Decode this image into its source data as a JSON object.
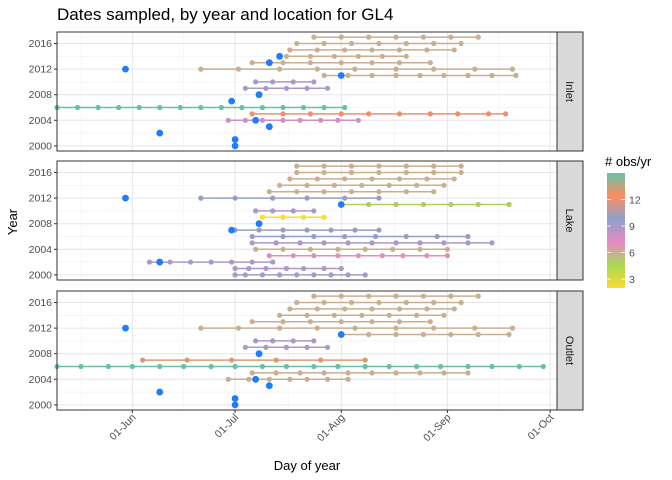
{
  "chart_data": {
    "type": "scatter",
    "title": "Dates sampled, by year and location for GL4",
    "xlabel": "Day of year",
    "ylabel": "Year",
    "x_domain_doy": [
      130,
      276
    ],
    "y_domain": [
      1999.2,
      2017.8
    ],
    "x_ticks": [
      {
        "doy": 152,
        "label": "01-Jun"
      },
      {
        "doy": 182,
        "label": "01-Jul"
      },
      {
        "doy": 213,
        "label": "01-Aug"
      },
      {
        "doy": 244,
        "label": "01-Sep"
      },
      {
        "doy": 274,
        "label": "01-Oct"
      }
    ],
    "y_ticks": [
      2000,
      2004,
      2008,
      2012,
      2016
    ],
    "grid": true,
    "legend": {
      "title": "# obs/yr",
      "position": "right",
      "range": [
        2,
        15
      ],
      "ticks": [
        3,
        6,
        9,
        12
      ],
      "colors": [
        "#FFD92F",
        "#A6D854",
        "#E78AC3",
        "#8DA0CB",
        "#FC8D62",
        "#66C2A5"
      ]
    },
    "single_point_color": "#1F7BFF",
    "panels": [
      {
        "label": "Inlet",
        "series": [
          {
            "year": 2000,
            "doy": [
              182
            ],
            "n": 1
          },
          {
            "year": 2001,
            "doy": [
              182
            ],
            "n": 1
          },
          {
            "year": 2002,
            "doy": [
              160
            ],
            "n": 1
          },
          {
            "year": 2003,
            "doy": [
              192
            ],
            "n": 1
          },
          {
            "year": 2004,
            "doy": [
              180,
              185,
              190,
              196,
              201,
              207,
              212,
              218
            ],
            "n": 8
          },
          {
            "year": 2004,
            "doy": [
              188
            ],
            "n": 1
          },
          {
            "year": 2005,
            "doy": [
              187,
              196,
              204,
              213,
              221,
              230,
              239,
              247,
              256,
              261
            ],
            "n": 12
          },
          {
            "year": 2006,
            "doy": [
              130,
              136,
              142,
              148,
              154,
              160,
              166,
              172,
              178,
              184,
              190,
              196,
              202,
              208,
              214
            ],
            "n": 15
          },
          {
            "year": 2007,
            "doy": [
              181
            ],
            "n": 1
          },
          {
            "year": 2008,
            "doy": [
              189
            ],
            "n": 1
          },
          {
            "year": 2009,
            "doy": [
              185,
              191,
              197,
              203,
              209
            ],
            "n": 9
          },
          {
            "year": 2010,
            "doy": [
              188,
              193,
              199,
              205
            ],
            "n": 9
          },
          {
            "year": 2011,
            "doy": [
              208,
              215,
              222,
              229,
              236,
              243,
              250,
              257,
              264
            ],
            "n": 6
          },
          {
            "year": 2011,
            "doy": [
              213
            ],
            "n": 1
          },
          {
            "year": 2012,
            "doy": [
              172,
              183,
              195,
              206,
              217,
              229,
              240,
              252,
              263
            ],
            "n": 6
          },
          {
            "year": 2012,
            "doy": [
              150
            ],
            "n": 1
          },
          {
            "year": 2013,
            "doy": [
              187,
              196,
              204,
              213,
              222,
              230,
              239
            ],
            "n": 6
          },
          {
            "year": 2013,
            "doy": [
              192
            ],
            "n": 1
          },
          {
            "year": 2014,
            "doy": [
              197,
              204,
              211,
              218,
              225,
              232
            ],
            "n": 6
          },
          {
            "year": 2014,
            "doy": [
              195
            ],
            "n": 1
          },
          {
            "year": 2015,
            "doy": [
              198,
              206,
              214,
              222,
              230,
              238,
              246
            ],
            "n": 6
          },
          {
            "year": 2016,
            "doy": [
              200,
              208,
              216,
              224,
              232,
              240,
              248
            ],
            "n": 6
          },
          {
            "year": 2017,
            "doy": [
              205,
              213,
              221,
              229,
              237,
              245,
              253
            ],
            "n": 6
          }
        ]
      },
      {
        "label": "Lake",
        "series": [
          {
            "year": 2000,
            "doy": [
              182,
              185,
              190,
              195,
              200,
              205,
              210,
              215,
              220
            ],
            "n": 9
          },
          {
            "year": 2001,
            "doy": [
              182,
              186,
              191,
              197,
              202,
              208,
              213
            ],
            "n": 9
          },
          {
            "year": 2002,
            "doy": [
              157,
              163,
              169,
              175,
              181,
              187,
              193
            ],
            "n": 9
          },
          {
            "year": 2002,
            "doy": [
              160
            ],
            "n": 1
          },
          {
            "year": 2003,
            "doy": [
              192,
              199,
              205,
              212,
              218,
              225,
              231,
              238,
              244
            ],
            "n": 7
          },
          {
            "year": 2004,
            "doy": [
              188,
              196,
              204,
              212,
              220,
              228,
              236,
              244
            ],
            "n": 6
          },
          {
            "year": 2005,
            "doy": [
              187,
              194,
              201,
              208,
              215,
              222,
              229,
              236,
              243,
              250,
              257
            ],
            "n": 9
          },
          {
            "year": 2006,
            "doy": [
              187,
              196,
              205,
              214,
              223,
              232,
              241,
              250
            ],
            "n": 10
          },
          {
            "year": 2007,
            "doy": [
              182,
              189,
              196,
              203,
              210,
              217,
              224
            ],
            "n": 10
          },
          {
            "year": 2007,
            "doy": [
              181
            ],
            "n": 1
          },
          {
            "year": 2008,
            "doy": [
              189
            ],
            "n": 1
          },
          {
            "year": 2009,
            "doy": [
              190,
              196,
              202,
              208
            ],
            "n": 2
          },
          {
            "year": 2010,
            "doy": [
              188,
              193,
              199,
              205
            ],
            "n": 9
          },
          {
            "year": 2011,
            "doy": [
              213,
              221,
              229,
              237,
              245,
              253,
              262
            ],
            "n": 5
          },
          {
            "year": 2011,
            "doy": [
              213
            ],
            "n": 1
          },
          {
            "year": 2012,
            "doy": [
              172,
              182,
              193,
              203,
              214,
              224
            ],
            "n": 10
          },
          {
            "year": 2012,
            "doy": [
              150
            ],
            "n": 1
          },
          {
            "year": 2013,
            "doy": [
              192,
              200,
              208,
              216,
              224,
              232,
              240
            ],
            "n": 6
          },
          {
            "year": 2014,
            "doy": [
              195,
              203,
              211,
              219,
              227,
              235,
              243
            ],
            "n": 6
          },
          {
            "year": 2015,
            "doy": [
              198,
              206,
              214,
              222,
              230,
              238,
              246
            ],
            "n": 6
          },
          {
            "year": 2016,
            "doy": [
              200,
              208,
              216,
              224,
              232,
              240,
              248
            ],
            "n": 6
          },
          {
            "year": 2017,
            "doy": [
              200,
              208,
              216,
              224,
              232,
              240,
              248
            ],
            "n": 6
          }
        ]
      },
      {
        "label": "Outlet",
        "series": [
          {
            "year": 2000,
            "doy": [
              182
            ],
            "n": 1
          },
          {
            "year": 2001,
            "doy": [
              182
            ],
            "n": 1
          },
          {
            "year": 2002,
            "doy": [
              160
            ],
            "n": 1
          },
          {
            "year": 2003,
            "doy": [
              192
            ],
            "n": 1
          },
          {
            "year": 2004,
            "doy": [
              180,
              186,
              192,
              198,
              203,
              209,
              215
            ],
            "n": 6
          },
          {
            "year": 2004,
            "doy": [
              188
            ],
            "n": 1
          },
          {
            "year": 2005,
            "doy": [
              187,
              194,
              201,
              208,
              215,
              222,
              229,
              236,
              243,
              250
            ],
            "n": 6
          },
          {
            "year": 2006,
            "doy": [
              130,
              137,
              145,
              152,
              160,
              167,
              175,
              182,
              190,
              197,
              205,
              212,
              220,
              227,
              235,
              242,
              250,
              257,
              265,
              272
            ],
            "n": 15
          },
          {
            "year": 2007,
            "doy": [
              155,
              168,
              181,
              194,
              207,
              220
            ],
            "n": 13
          },
          {
            "year": 2008,
            "doy": [
              189
            ],
            "n": 1
          },
          {
            "year": 2009,
            "doy": [
              185,
              191,
              197,
              203,
              209
            ],
            "n": 9
          },
          {
            "year": 2010,
            "doy": [
              188,
              193,
              199,
              205
            ],
            "n": 9
          },
          {
            "year": 2011,
            "doy": [
              213,
              221,
              229,
              237,
              245,
              253,
              262
            ],
            "n": 6
          },
          {
            "year": 2011,
            "doy": [
              213
            ],
            "n": 1
          },
          {
            "year": 2012,
            "doy": [
              172,
              183,
              195,
              206,
              217,
              229,
              240,
              252,
              263
            ],
            "n": 6
          },
          {
            "year": 2012,
            "doy": [
              150
            ],
            "n": 1
          },
          {
            "year": 2013,
            "doy": [
              187,
              196,
              204,
              213,
              222,
              230,
              239
            ],
            "n": 6
          },
          {
            "year": 2014,
            "doy": [
              195,
              203,
              211,
              219,
              227,
              235,
              243
            ],
            "n": 6
          },
          {
            "year": 2015,
            "doy": [
              198,
              206,
              214,
              222,
              230,
              238,
              246
            ],
            "n": 6
          },
          {
            "year": 2016,
            "doy": [
              200,
              208,
              216,
              224,
              232,
              240,
              248
            ],
            "n": 6
          },
          {
            "year": 2017,
            "doy": [
              205,
              213,
              221,
              229,
              237,
              245,
              253
            ],
            "n": 6
          }
        ]
      }
    ]
  }
}
